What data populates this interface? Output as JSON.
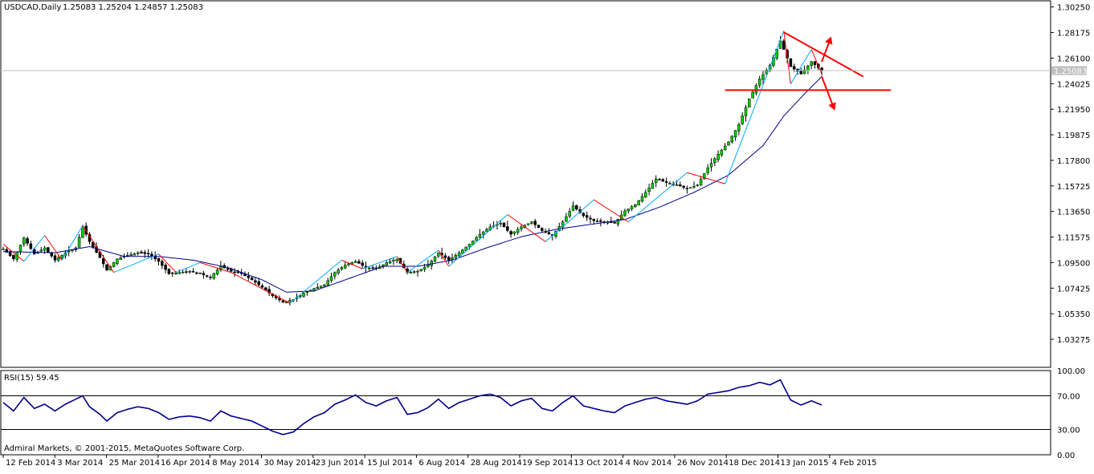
{
  "header": {
    "symbol_label": "USDCAD,Daily",
    "ohlc_label": "1.25083 1.25204 1.24857 1.25083"
  },
  "rsi": {
    "label": "RSI(15) 59.45",
    "levels": [
      "100.00",
      "70.00",
      "30.00",
      "0.00"
    ],
    "level_values": [
      100,
      70,
      30,
      0
    ]
  },
  "footer": {
    "copyright": "Admiral Markets, © 2001-2015, MetaQuotes Software Corp."
  },
  "colors": {
    "candle_up": "#00cc00",
    "candle_down": "#000000",
    "moving_average": "#00008b",
    "zigzag_up": "#00aaff",
    "zigzag_down": "#ff0000",
    "pattern": "#ff0000",
    "rsi_line": "#00008b",
    "bid_label_bg": "#c0c0c0"
  },
  "chart_data": [
    {
      "type": "candlestick",
      "title": "USDCAD,Daily",
      "x_labels": [
        "12 Feb 2014",
        "3 Mar 2014",
        "25 Mar 2014",
        "16 Apr 2014",
        "8 May 2014",
        "30 May 2014",
        "23 Jun 2014",
        "15 Jul 2014",
        "6 Aug 2014",
        "28 Aug 2014",
        "19 Sep 2014",
        "13 Oct 2014",
        "4 Nov 2014",
        "26 Nov 2014",
        "18 Dec 2014",
        "13 Jan 2015",
        "4 Feb 2015"
      ],
      "y_ticks": [
        "1.30250",
        "1.28175",
        "1.26100",
        "1.24025",
        "1.21950",
        "1.19875",
        "1.17800",
        "1.15725",
        "1.13650",
        "1.11575",
        "1.09500",
        "1.07425",
        "1.05350",
        "1.03275"
      ],
      "ylim": [
        1.01,
        1.3075
      ],
      "current_price": "1.25083",
      "close_path": [
        [
          0,
          1.106
        ],
        [
          3,
          1.098
        ],
        [
          6,
          1.115
        ],
        [
          9,
          1.102
        ],
        [
          12,
          1.107
        ],
        [
          15,
          1.097
        ],
        [
          18,
          1.103
        ],
        [
          21,
          1.107
        ],
        [
          23,
          1.124
        ],
        [
          25,
          1.112
        ],
        [
          28,
          1.099
        ],
        [
          30,
          1.089
        ],
        [
          33,
          1.098
        ],
        [
          36,
          1.101
        ],
        [
          39,
          1.103
        ],
        [
          42,
          1.102
        ],
        [
          45,
          1.096
        ],
        [
          48,
          1.086
        ],
        [
          51,
          1.087
        ],
        [
          54,
          1.088
        ],
        [
          57,
          1.086
        ],
        [
          60,
          1.083
        ],
        [
          63,
          1.092
        ],
        [
          66,
          1.088
        ],
        [
          69,
          1.086
        ],
        [
          72,
          1.081
        ],
        [
          75,
          1.075
        ],
        [
          78,
          1.068
        ],
        [
          81,
          1.063
        ],
        [
          84,
          1.065
        ],
        [
          87,
          1.07
        ],
        [
          90,
          1.074
        ],
        [
          93,
          1.077
        ],
        [
          96,
          1.087
        ],
        [
          99,
          1.093
        ],
        [
          102,
          1.096
        ],
        [
          105,
          1.091
        ],
        [
          108,
          1.09
        ],
        [
          111,
          1.095
        ],
        [
          114,
          1.098
        ],
        [
          117,
          1.087
        ],
        [
          120,
          1.088
        ],
        [
          123,
          1.093
        ],
        [
          126,
          1.103
        ],
        [
          129,
          1.097
        ],
        [
          132,
          1.103
        ],
        [
          135,
          1.11
        ],
        [
          138,
          1.118
        ],
        [
          141,
          1.124
        ],
        [
          144,
          1.127
        ],
        [
          147,
          1.118
        ],
        [
          150,
          1.124
        ],
        [
          153,
          1.128
        ],
        [
          156,
          1.121
        ],
        [
          159,
          1.117
        ],
        [
          162,
          1.128
        ],
        [
          165,
          1.141
        ],
        [
          168,
          1.133
        ],
        [
          171,
          1.129
        ],
        [
          174,
          1.128
        ],
        [
          177,
          1.127
        ],
        [
          180,
          1.137
        ],
        [
          183,
          1.142
        ],
        [
          186,
          1.152
        ],
        [
          189,
          1.163
        ],
        [
          192,
          1.16
        ],
        [
          195,
          1.158
        ],
        [
          198,
          1.155
        ],
        [
          201,
          1.158
        ],
        [
          204,
          1.172
        ],
        [
          207,
          1.183
        ],
        [
          210,
          1.193
        ],
        [
          213,
          1.207
        ],
        [
          216,
          1.228
        ],
        [
          219,
          1.244
        ],
        [
          222,
          1.255
        ],
        [
          225,
          1.275
        ],
        [
          228,
          1.254
        ],
        [
          231,
          1.248
        ],
        [
          234,
          1.258
        ],
        [
          237,
          1.251
        ]
      ],
      "moving_average_path": [
        [
          0,
          1.104
        ],
        [
          15,
          1.103
        ],
        [
          25,
          1.108
        ],
        [
          35,
          1.1
        ],
        [
          45,
          1.1
        ],
        [
          55,
          1.097
        ],
        [
          65,
          1.091
        ],
        [
          75,
          1.081
        ],
        [
          82,
          1.071
        ],
        [
          90,
          1.072
        ],
        [
          100,
          1.082
        ],
        [
          110,
          1.092
        ],
        [
          120,
          1.092
        ],
        [
          130,
          1.097
        ],
        [
          140,
          1.107
        ],
        [
          150,
          1.116
        ],
        [
          160,
          1.122
        ],
        [
          170,
          1.126
        ],
        [
          180,
          1.13
        ],
        [
          190,
          1.14
        ],
        [
          200,
          1.152
        ],
        [
          210,
          1.166
        ],
        [
          220,
          1.19
        ],
        [
          226,
          1.214
        ],
        [
          232,
          1.232
        ],
        [
          237,
          1.246
        ]
      ],
      "zigzag_path": [
        [
          0,
          1.11
        ],
        [
          6,
          1.096
        ],
        [
          12,
          1.117
        ],
        [
          17,
          1.097
        ],
        [
          23,
          1.125
        ],
        [
          32,
          1.087
        ],
        [
          45,
          1.102
        ],
        [
          50,
          1.087
        ],
        [
          57,
          1.095
        ],
        [
          66,
          1.087
        ],
        [
          83,
          1.062
        ],
        [
          98,
          1.097
        ],
        [
          104,
          1.09
        ],
        [
          114,
          1.1
        ],
        [
          117,
          1.087
        ],
        [
          126,
          1.105
        ],
        [
          129,
          1.092
        ],
        [
          146,
          1.134
        ],
        [
          157,
          1.112
        ],
        [
          171,
          1.146
        ],
        [
          181,
          1.128
        ],
        [
          198,
          1.168
        ],
        [
          209,
          1.159
        ],
        [
          226,
          1.283
        ],
        [
          228,
          1.24
        ],
        [
          234,
          1.268
        ],
        [
          237,
          1.248
        ]
      ],
      "pattern_lines": {
        "resistance": [
          [
            226,
            1.282
          ],
          [
            249,
            1.246
          ]
        ],
        "support": [
          [
            209,
            1.235
          ],
          [
            257,
            1.235
          ]
        ],
        "breakout_up_arrow": [
          [
            237,
            1.258
          ],
          [
            239,
            1.273
          ]
        ],
        "breakout_down_arrow": [
          [
            237,
            1.246
          ],
          [
            240,
            1.224
          ]
        ]
      }
    },
    {
      "type": "line",
      "title": "RSI(15) 59.45",
      "ylim": [
        0,
        100
      ],
      "y_ticks": [
        "100.00",
        "70.00",
        "30.00",
        "0.00"
      ],
      "value_path": [
        [
          0,
          62
        ],
        [
          3,
          52
        ],
        [
          6,
          68
        ],
        [
          9,
          55
        ],
        [
          12,
          60
        ],
        [
          15,
          52
        ],
        [
          18,
          60
        ],
        [
          21,
          66
        ],
        [
          23,
          70
        ],
        [
          25,
          57
        ],
        [
          28,
          48
        ],
        [
          30,
          40
        ],
        [
          33,
          50
        ],
        [
          36,
          54
        ],
        [
          39,
          57
        ],
        [
          42,
          55
        ],
        [
          45,
          50
        ],
        [
          48,
          42
        ],
        [
          51,
          45
        ],
        [
          54,
          46
        ],
        [
          57,
          44
        ],
        [
          60,
          40
        ],
        [
          63,
          52
        ],
        [
          66,
          46
        ],
        [
          69,
          43
        ],
        [
          72,
          40
        ],
        [
          75,
          34
        ],
        [
          78,
          28
        ],
        [
          81,
          24
        ],
        [
          84,
          27
        ],
        [
          87,
          37
        ],
        [
          90,
          45
        ],
        [
          93,
          50
        ],
        [
          96,
          60
        ],
        [
          99,
          65
        ],
        [
          102,
          71
        ],
        [
          105,
          62
        ],
        [
          108,
          58
        ],
        [
          111,
          64
        ],
        [
          114,
          68
        ],
        [
          117,
          48
        ],
        [
          120,
          50
        ],
        [
          123,
          56
        ],
        [
          126,
          66
        ],
        [
          129,
          55
        ],
        [
          132,
          62
        ],
        [
          135,
          66
        ],
        [
          138,
          70
        ],
        [
          141,
          72
        ],
        [
          144,
          68
        ],
        [
          147,
          58
        ],
        [
          150,
          64
        ],
        [
          153,
          67
        ],
        [
          156,
          55
        ],
        [
          159,
          52
        ],
        [
          162,
          62
        ],
        [
          165,
          70
        ],
        [
          168,
          58
        ],
        [
          171,
          55
        ],
        [
          174,
          52
        ],
        [
          177,
          50
        ],
        [
          180,
          58
        ],
        [
          183,
          62
        ],
        [
          186,
          66
        ],
        [
          189,
          68
        ],
        [
          192,
          64
        ],
        [
          195,
          62
        ],
        [
          198,
          60
        ],
        [
          201,
          64
        ],
        [
          204,
          72
        ],
        [
          207,
          74
        ],
        [
          210,
          76
        ],
        [
          213,
          80
        ],
        [
          216,
          82
        ],
        [
          219,
          86
        ],
        [
          222,
          83
        ],
        [
          225,
          89
        ],
        [
          228,
          65
        ],
        [
          231,
          59
        ],
        [
          234,
          64
        ],
        [
          237,
          59
        ]
      ]
    }
  ]
}
